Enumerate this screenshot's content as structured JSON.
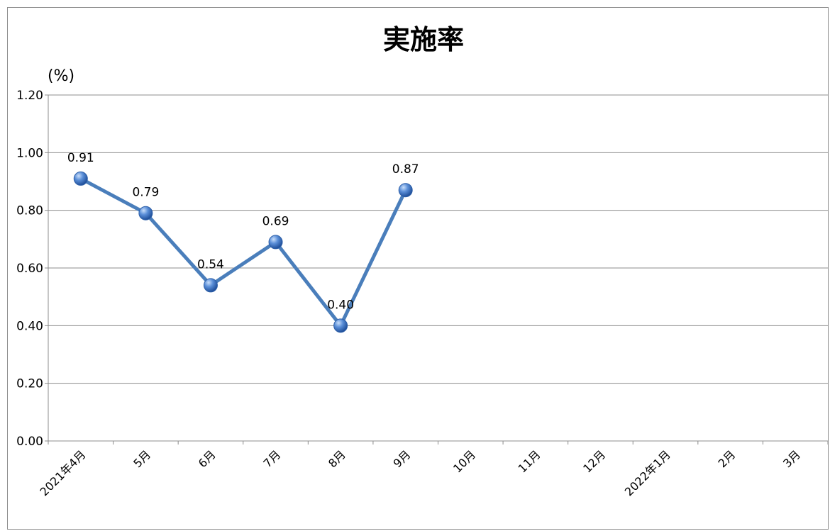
{
  "chart_data": {
    "type": "line",
    "title": "実施率",
    "ylabel": "(%)",
    "xlabel": "",
    "categories": [
      "2021年4月",
      "5月",
      "6月",
      "7月",
      "8月",
      "9月",
      "10月",
      "11月",
      "12月",
      "2022年1月",
      "2月",
      "3月"
    ],
    "series": [
      {
        "values": [
          0.91,
          0.79,
          0.54,
          0.69,
          0.4,
          0.87,
          null,
          null,
          null,
          null,
          null,
          null
        ],
        "data_labels": [
          "0.91",
          "0.79",
          "0.54",
          "0.69",
          "0.40",
          "0.87",
          "",
          "",
          "",
          "",
          "",
          ""
        ]
      }
    ],
    "ylim": [
      0,
      1.2
    ],
    "yticks": [
      "0.00",
      "0.20",
      "0.40",
      "0.60",
      "0.80",
      "1.00",
      "1.20"
    ],
    "grid": true,
    "legend": "none",
    "colors": {
      "line": "#4a7ebb",
      "marker": "#3f74c4",
      "grid": "#8c8c8c",
      "axis": "#8c8c8c"
    }
  }
}
